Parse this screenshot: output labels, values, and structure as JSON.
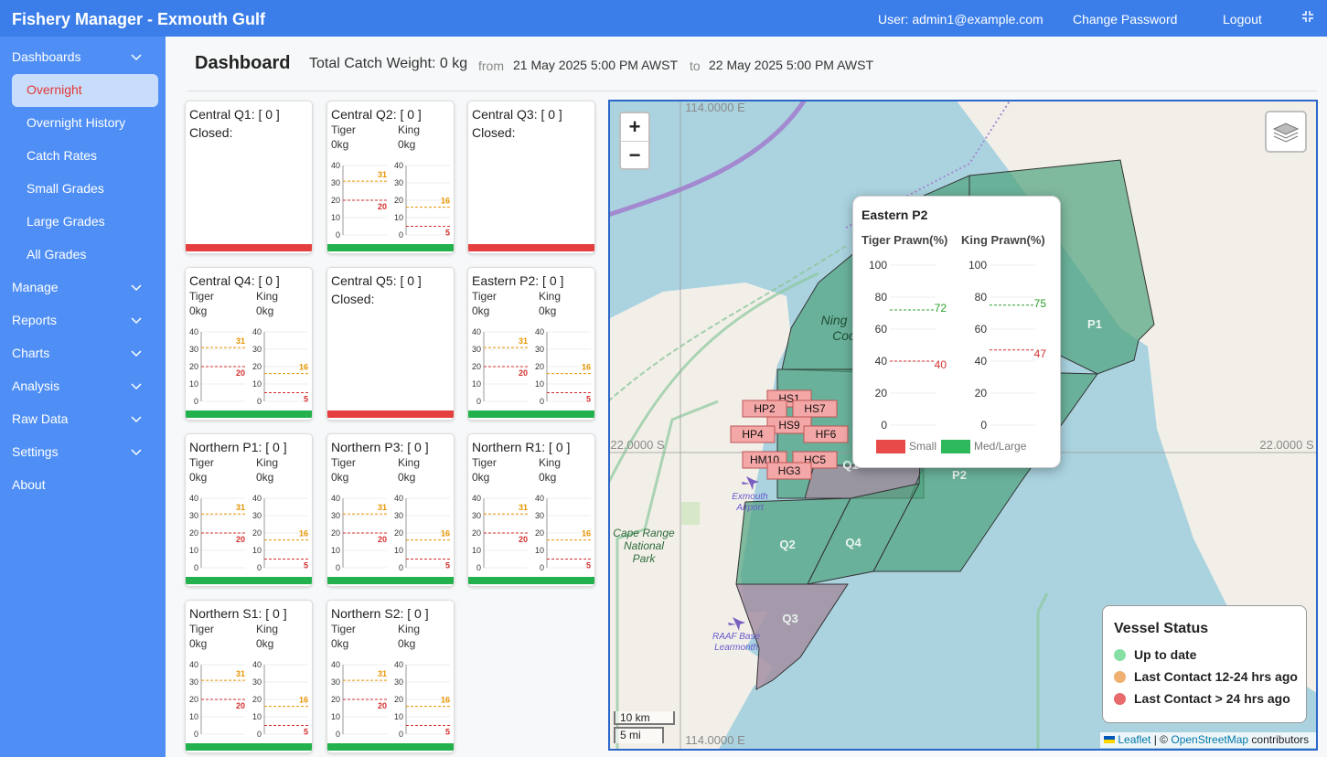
{
  "header": {
    "title": "Fishery Manager - Exmouth Gulf",
    "user": "User: admin1@example.com",
    "change_password": "Change Password",
    "logout": "Logout"
  },
  "sidebar": [
    {
      "label": "Dashboards",
      "expandable": true
    },
    {
      "label": "Overnight",
      "sub": true,
      "active": true
    },
    {
      "label": "Overnight History",
      "sub": true
    },
    {
      "label": "Catch Rates",
      "sub": true
    },
    {
      "label": "Small Grades",
      "sub": true
    },
    {
      "label": "Large Grades",
      "sub": true
    },
    {
      "label": "All Grades",
      "sub": true
    },
    {
      "label": "Manage",
      "expandable": true
    },
    {
      "label": "Reports",
      "expandable": true
    },
    {
      "label": "Charts",
      "expandable": true
    },
    {
      "label": "Analysis",
      "expandable": true
    },
    {
      "label": "Raw Data",
      "expandable": true
    },
    {
      "label": "Settings",
      "expandable": true
    },
    {
      "label": "About"
    }
  ],
  "dashboard": {
    "title": "Dashboard",
    "total": "Total Catch Weight: 0 kg",
    "from": "from",
    "start": "21 May 2025 5:00 PM AWST",
    "to": "to",
    "end": "22 May 2025 5:00 PM AWST"
  },
  "cards": [
    {
      "title": "Central Q1: [ 0 ]",
      "status": "Closed:",
      "status_color": "#e53e3e"
    },
    {
      "title": "Central Q2: [ 0 ]",
      "status_color": "#22b14c",
      "columns": [
        {
          "label": "Tiger",
          "weight": "0kg",
          "ylim": [
            0,
            40
          ],
          "yticks": [
            0,
            10,
            20,
            30,
            40
          ],
          "lines": [
            {
              "value": 31,
              "color": "#e69500"
            },
            {
              "value": 20,
              "color": "#d32f2f"
            }
          ]
        },
        {
          "label": "King",
          "weight": "0kg",
          "ylim": [
            0,
            40
          ],
          "yticks": [
            0,
            10,
            20,
            30,
            40
          ],
          "lines": [
            {
              "value": 16,
              "color": "#e69500"
            },
            {
              "value": 5,
              "color": "#d32f2f"
            }
          ]
        }
      ]
    },
    {
      "title": "Central Q3: [ 0 ]",
      "status": "Closed:",
      "status_color": "#e53e3e"
    },
    {
      "title": "Central Q4: [ 0 ]",
      "status_color": "#22b14c",
      "columns": [
        {
          "label": "Tiger",
          "weight": "0kg",
          "ylim": [
            0,
            40
          ],
          "yticks": [
            0,
            10,
            20,
            30,
            40
          ],
          "lines": [
            {
              "value": 31,
              "color": "#e69500"
            },
            {
              "value": 20,
              "color": "#d32f2f"
            }
          ]
        },
        {
          "label": "King",
          "weight": "0kg",
          "ylim": [
            0,
            40
          ],
          "yticks": [
            0,
            10,
            20,
            30,
            40
          ],
          "lines": [
            {
              "value": 16,
              "color": "#e69500"
            },
            {
              "value": 5,
              "color": "#d32f2f"
            }
          ]
        }
      ]
    },
    {
      "title": "Central Q5: [ 0 ]",
      "status": "Closed:",
      "status_color": "#e53e3e"
    },
    {
      "title": "Eastern P2: [ 0 ]",
      "status_color": "#22b14c",
      "columns": [
        {
          "label": "Tiger",
          "weight": "0kg",
          "ylim": [
            0,
            40
          ],
          "yticks": [
            0,
            10,
            20,
            30,
            40
          ],
          "lines": [
            {
              "value": 31,
              "color": "#e69500"
            },
            {
              "value": 20,
              "color": "#d32f2f"
            }
          ]
        },
        {
          "label": "King",
          "weight": "0kg",
          "ylim": [
            0,
            40
          ],
          "yticks": [
            0,
            10,
            20,
            30,
            40
          ],
          "lines": [
            {
              "value": 16,
              "color": "#e69500"
            },
            {
              "value": 5,
              "color": "#d32f2f"
            }
          ]
        }
      ]
    },
    {
      "title": "Northern P1: [ 0 ]",
      "status_color": "#22b14c",
      "columns": [
        {
          "label": "Tiger",
          "weight": "0kg",
          "ylim": [
            0,
            40
          ],
          "yticks": [
            0,
            10,
            20,
            30,
            40
          ],
          "lines": [
            {
              "value": 31,
              "color": "#e69500"
            },
            {
              "value": 20,
              "color": "#d32f2f"
            }
          ]
        },
        {
          "label": "King",
          "weight": "0kg",
          "ylim": [
            0,
            40
          ],
          "yticks": [
            0,
            10,
            20,
            30,
            40
          ],
          "lines": [
            {
              "value": 16,
              "color": "#e69500"
            },
            {
              "value": 5,
              "color": "#d32f2f"
            }
          ]
        }
      ]
    },
    {
      "title": "Northern P3: [ 0 ]",
      "status_color": "#22b14c",
      "columns": [
        {
          "label": "Tiger",
          "weight": "0kg",
          "ylim": [
            0,
            40
          ],
          "yticks": [
            0,
            10,
            20,
            30,
            40
          ],
          "lines": [
            {
              "value": 31,
              "color": "#e69500"
            },
            {
              "value": 20,
              "color": "#d32f2f"
            }
          ]
        },
        {
          "label": "King",
          "weight": "0kg",
          "ylim": [
            0,
            40
          ],
          "yticks": [
            0,
            10,
            20,
            30,
            40
          ],
          "lines": [
            {
              "value": 16,
              "color": "#e69500"
            },
            {
              "value": 5,
              "color": "#d32f2f"
            }
          ]
        }
      ]
    },
    {
      "title": "Northern R1: [ 0 ]",
      "status_color": "#22b14c",
      "columns": [
        {
          "label": "Tiger",
          "weight": "0kg",
          "ylim": [
            0,
            40
          ],
          "yticks": [
            0,
            10,
            20,
            30,
            40
          ],
          "lines": [
            {
              "value": 31,
              "color": "#e69500"
            },
            {
              "value": 20,
              "color": "#d32f2f"
            }
          ]
        },
        {
          "label": "King",
          "weight": "0kg",
          "ylim": [
            0,
            40
          ],
          "yticks": [
            0,
            10,
            20,
            30,
            40
          ],
          "lines": [
            {
              "value": 16,
              "color": "#e69500"
            },
            {
              "value": 5,
              "color": "#d32f2f"
            }
          ]
        }
      ]
    },
    {
      "title": "Northern S1: [ 0 ]",
      "status_color": "#22b14c",
      "columns": [
        {
          "label": "Tiger",
          "weight": "0kg",
          "ylim": [
            0,
            40
          ],
          "yticks": [
            0,
            10,
            20,
            30,
            40
          ],
          "lines": [
            {
              "value": 31,
              "color": "#e69500"
            },
            {
              "value": 20,
              "color": "#d32f2f"
            }
          ]
        },
        {
          "label": "King",
          "weight": "0kg",
          "ylim": [
            0,
            40
          ],
          "yticks": [
            0,
            10,
            20,
            30,
            40
          ],
          "lines": [
            {
              "value": 16,
              "color": "#e69500"
            },
            {
              "value": 5,
              "color": "#d32f2f"
            }
          ]
        }
      ]
    },
    {
      "title": "Northern S2: [ 0 ]",
      "status_color": "#22b14c",
      "columns": [
        {
          "label": "Tiger",
          "weight": "0kg",
          "ylim": [
            0,
            40
          ],
          "yticks": [
            0,
            10,
            20,
            30,
            40
          ],
          "lines": [
            {
              "value": 31,
              "color": "#e69500"
            },
            {
              "value": 20,
              "color": "#d32f2f"
            }
          ]
        },
        {
          "label": "King",
          "weight": "0kg",
          "ylim": [
            0,
            40
          ],
          "yticks": [
            0,
            10,
            20,
            30,
            40
          ],
          "lines": [
            {
              "value": 16,
              "color": "#e69500"
            },
            {
              "value": 5,
              "color": "#d32f2f"
            }
          ]
        }
      ]
    }
  ],
  "map": {
    "zoom_in": "+",
    "zoom_out": "−",
    "grid_labels": [
      "114.0000 E",
      "114.0000 E",
      "22.0000 S",
      "22.0000 S"
    ],
    "zones": [
      "P1",
      "P2",
      "Q2",
      "Q4",
      "Q3",
      "Q1",
      "Ning",
      "Coo"
    ],
    "places": [
      {
        "lines": [
          "Exmouth",
          "Airport"
        ]
      },
      {
        "lines": [
          "Cape Range",
          "National",
          "Park"
        ]
      },
      {
        "lines": [
          "RAAF Base",
          "Learmonth"
        ]
      }
    ],
    "vessels": [
      "HS1",
      "HP2",
      "HS7",
      "HS9",
      "HP4",
      "HF6",
      "HM10",
      "HC5",
      "HG3"
    ],
    "scale": [
      "10 km",
      "5 mi"
    ],
    "attribution": {
      "leaflet": "Leaflet",
      "sep": "| ©",
      "osm": "OpenStreetMap",
      "rest": "contributors"
    },
    "legend": {
      "title": "Vessel Status",
      "items": [
        {
          "label": "Up to date",
          "color": "#86e0a6"
        },
        {
          "label": "Last Contact 12-24 hrs ago",
          "color": "#f0b070"
        },
        {
          "label": "Last Contact > 24 hrs ago",
          "color": "#e86a6a"
        }
      ]
    },
    "popup": {
      "title": "Eastern P2",
      "columns": [
        {
          "label": "Tiger Prawn(%)",
          "ylim": [
            0,
            100
          ],
          "yticks": [
            0,
            20,
            40,
            60,
            80,
            100
          ],
          "lines": [
            {
              "value": 72,
              "color": "#2e9e2e"
            },
            {
              "value": 40,
              "color": "#d32f2f"
            }
          ]
        },
        {
          "label": "King Prawn(%)",
          "ylim": [
            0,
            100
          ],
          "yticks": [
            0,
            20,
            40,
            60,
            80,
            100
          ],
          "lines": [
            {
              "value": 75,
              "color": "#2e9e2e"
            },
            {
              "value": 47,
              "color": "#d32f2f"
            }
          ]
        }
      ],
      "legend": [
        {
          "label": "Small",
          "color": "#e84a4a"
        },
        {
          "label": "Med/Large",
          "color": "#2eb85c"
        }
      ]
    }
  }
}
